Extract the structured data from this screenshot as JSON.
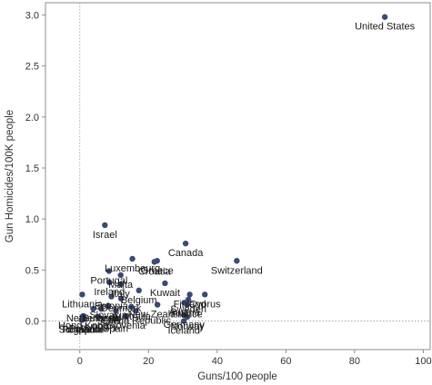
{
  "chart_data": {
    "type": "scatter",
    "title": "",
    "xlabel": "Guns/100 people",
    "ylabel": "Gun Homicides/100K people",
    "xlim": [
      -10,
      102
    ],
    "ylim": [
      -0.28,
      3.12
    ],
    "xticks": [
      0,
      20,
      40,
      60,
      80,
      100
    ],
    "xtick_labels": [
      "0",
      "20",
      "40",
      "60",
      "80",
      "100"
    ],
    "yticks": [
      0,
      0.5,
      1,
      1.5,
      2,
      2.5,
      3
    ],
    "ytick_labels": [
      "0.0",
      "0.5",
      "1.0",
      "1.5",
      "2.0",
      "2.5",
      "3.0"
    ],
    "reference_lines": {
      "x": 0,
      "y": 0,
      "style": "dotted"
    },
    "grid": false,
    "point_color": "#3b4a72",
    "points": [
      {
        "label": "United States",
        "x": 88.8,
        "y": 2.98
      },
      {
        "label": "Israel",
        "x": 7.3,
        "y": 0.94
      },
      {
        "label": "Canada",
        "x": 30.8,
        "y": 0.76
      },
      {
        "label": "Switzerland",
        "x": 45.7,
        "y": 0.59
      },
      {
        "label": "Luxembourg",
        "x": 15.3,
        "y": 0.61
      },
      {
        "label": "Greece",
        "x": 22.5,
        "y": 0.59
      },
      {
        "label": "Croatia",
        "x": 21.7,
        "y": 0.58
      },
      {
        "label": "Portugal",
        "x": 8.5,
        "y": 0.49
      },
      {
        "label": "Malta",
        "x": 11.9,
        "y": 0.45
      },
      {
        "label": "Ireland",
        "x": 8.6,
        "y": 0.38
      },
      {
        "label": "Italy",
        "x": 11.9,
        "y": 0.36
      },
      {
        "label": "Kuwait",
        "x": 24.8,
        "y": 0.37
      },
      {
        "label": "Estonia",
        "x": 9.2,
        "y": 0.24
      },
      {
        "label": "Belgium",
        "x": 17.2,
        "y": 0.3
      },
      {
        "label": "Finland",
        "x": 32.0,
        "y": 0.26
      },
      {
        "label": "Cyprus",
        "x": 36.4,
        "y": 0.26
      },
      {
        "label": "Lithuania",
        "x": 0.7,
        "y": 0.26
      },
      {
        "label": "Denmark",
        "x": 12.0,
        "y": 0.22
      },
      {
        "label": "Austria",
        "x": 30.4,
        "y": 0.18
      },
      {
        "label": "France",
        "x": 31.2,
        "y": 0.16
      },
      {
        "label": "Sweden",
        "x": 31.6,
        "y": 0.21
      },
      {
        "label": "New Zealand",
        "x": 22.6,
        "y": 0.16
      },
      {
        "label": "Netherlands",
        "x": 3.9,
        "y": 0.12
      },
      {
        "label": "Slovakia",
        "x": 8.3,
        "y": 0.15
      },
      {
        "label": "Bulgaria",
        "x": 6.2,
        "y": 0.12
      },
      {
        "label": "Latvia",
        "x": 10.5,
        "y": 0.1
      },
      {
        "label": "Czech Republic",
        "x": 16.3,
        "y": 0.1
      },
      {
        "label": "Australia",
        "x": 15.0,
        "y": 0.14
      },
      {
        "label": "Hong Kong",
        "x": 1.0,
        "y": 0.05
      },
      {
        "label": "Slovenia",
        "x": 13.5,
        "y": 0.05
      },
      {
        "label": "Germany",
        "x": 30.3,
        "y": 0.06
      },
      {
        "label": "Norway",
        "x": 31.3,
        "y": 0.04
      },
      {
        "label": "Hungary",
        "x": 5.5,
        "y": 0.04
      },
      {
        "label": "Spain",
        "x": 10.4,
        "y": 0.02
      },
      {
        "label": "Singapore",
        "x": 0.5,
        "y": 0.01
      },
      {
        "label": "Japan",
        "x": 0.6,
        "y": 0.01
      },
      {
        "label": "Romania",
        "x": 0.7,
        "y": 0.01
      },
      {
        "label": "Poland",
        "x": 1.3,
        "y": 0.02
      },
      {
        "label": "Iceland",
        "x": 30.3,
        "y": 0.0
      }
    ]
  }
}
